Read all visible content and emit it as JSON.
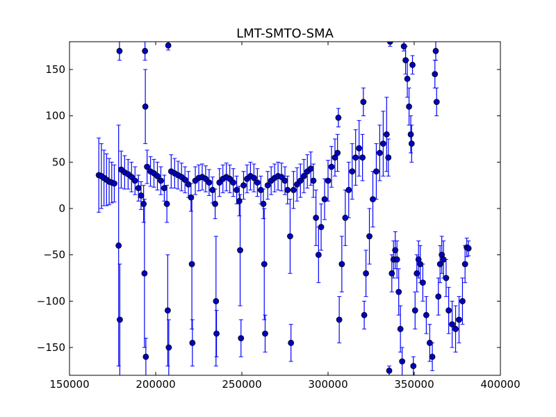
{
  "chart_data": {
    "type": "scatter",
    "title": "LMT-SMTO-SMA",
    "xlabel": "",
    "ylabel": "",
    "xlim": [
      150000,
      400000
    ],
    "ylim": [
      -180,
      180
    ],
    "x_ticks": [
      150000,
      200000,
      250000,
      300000,
      350000,
      400000
    ],
    "x_tick_labels": [
      "150000",
      "200000",
      "250000",
      "300000",
      "350000",
      "400000"
    ],
    "y_ticks": [
      150,
      100,
      50,
      0,
      -50,
      -100,
      -150
    ],
    "y_tick_labels": [
      "150",
      "100",
      "50",
      "0",
      "−50",
      "−100",
      "−150"
    ],
    "grid": false,
    "colors": {
      "marker": "#0000bf",
      "errorbar": "#0000ff",
      "background": "#ffffff"
    },
    "series": [
      {
        "points": [
          [
            167000,
            36,
            40
          ],
          [
            168500,
            35,
            35
          ],
          [
            170000,
            33,
            30
          ],
          [
            171500,
            31,
            28
          ],
          [
            173000,
            29,
            25
          ],
          [
            174500,
            28,
            22
          ],
          [
            176000,
            27,
            20
          ],
          [
            178500,
            -40,
            130
          ],
          [
            179000,
            170,
            10
          ],
          [
            179200,
            -120,
            60
          ],
          [
            180000,
            42,
            20
          ],
          [
            182000,
            39,
            18
          ],
          [
            184000,
            37,
            16
          ],
          [
            186000,
            34,
            16
          ],
          [
            188000,
            30,
            15
          ],
          [
            190000,
            22,
            14
          ],
          [
            191500,
            14,
            15
          ],
          [
            193000,
            5,
            20
          ],
          [
            193500,
            -70,
            80
          ],
          [
            193800,
            170,
            10
          ],
          [
            194000,
            110,
            40
          ],
          [
            194300,
            -160,
            20
          ],
          [
            195000,
            45,
            18
          ],
          [
            197000,
            40,
            16
          ],
          [
            199000,
            38,
            15
          ],
          [
            201000,
            35,
            15
          ],
          [
            203000,
            30,
            15
          ],
          [
            205000,
            22,
            14
          ],
          [
            206500,
            5,
            20
          ],
          [
            207000,
            -110,
            60
          ],
          [
            207300,
            176,
            5
          ],
          [
            207600,
            -150,
            30
          ],
          [
            209000,
            40,
            18
          ],
          [
            211000,
            38,
            16
          ],
          [
            213000,
            36,
            15
          ],
          [
            215000,
            34,
            15
          ],
          [
            217000,
            31,
            14
          ],
          [
            219000,
            26,
            14
          ],
          [
            220500,
            12,
            15
          ],
          [
            221000,
            -60,
            70
          ],
          [
            221300,
            -145,
            25
          ],
          [
            223000,
            30,
            15
          ],
          [
            225000,
            33,
            14
          ],
          [
            227000,
            34,
            14
          ],
          [
            229000,
            32,
            14
          ],
          [
            231000,
            28,
            14
          ],
          [
            233000,
            20,
            14
          ],
          [
            234500,
            5,
            16
          ],
          [
            235000,
            -100,
            70
          ],
          [
            235300,
            -135,
            25
          ],
          [
            237000,
            28,
            15
          ],
          [
            239000,
            32,
            15
          ],
          [
            241000,
            34,
            15
          ],
          [
            243000,
            32,
            15
          ],
          [
            245000,
            28,
            15
          ],
          [
            247000,
            20,
            15
          ],
          [
            248500,
            8,
            16
          ],
          [
            249000,
            -45,
            60
          ],
          [
            249500,
            -140,
            20
          ],
          [
            251000,
            25,
            15
          ],
          [
            253000,
            32,
            15
          ],
          [
            255000,
            35,
            15
          ],
          [
            257000,
            33,
            15
          ],
          [
            259000,
            28,
            15
          ],
          [
            261000,
            20,
            15
          ],
          [
            262500,
            5,
            16
          ],
          [
            263000,
            -60,
            60
          ],
          [
            263500,
            -135,
            20
          ],
          [
            265000,
            25,
            15
          ],
          [
            267000,
            30,
            15
          ],
          [
            269000,
            33,
            15
          ],
          [
            271000,
            35,
            15
          ],
          [
            273000,
            34,
            15
          ],
          [
            275000,
            30,
            15
          ],
          [
            276500,
            20,
            15
          ],
          [
            278000,
            -30,
            40
          ],
          [
            278500,
            -145,
            20
          ],
          [
            280000,
            20,
            20
          ],
          [
            282000,
            26,
            18
          ],
          [
            284000,
            30,
            18
          ],
          [
            286000,
            35,
            18
          ],
          [
            288000,
            40,
            18
          ],
          [
            290000,
            43,
            18
          ],
          [
            291500,
            30,
            18
          ],
          [
            293000,
            -10,
            30
          ],
          [
            294500,
            -50,
            30
          ],
          [
            296000,
            -20,
            25
          ],
          [
            298000,
            10,
            22
          ],
          [
            300000,
            30,
            22
          ],
          [
            302000,
            45,
            22
          ],
          [
            304000,
            55,
            20
          ],
          [
            305500,
            60,
            20
          ],
          [
            306000,
            98,
            10
          ],
          [
            306500,
            -120,
            25
          ],
          [
            308000,
            -60,
            30
          ],
          [
            310000,
            -10,
            30
          ],
          [
            312000,
            20,
            30
          ],
          [
            314000,
            40,
            30
          ],
          [
            316000,
            55,
            30
          ],
          [
            318000,
            65,
            30
          ],
          [
            320000,
            55,
            25
          ],
          [
            320500,
            115,
            15
          ],
          [
            321000,
            -115,
            15
          ],
          [
            322000,
            -70,
            25
          ],
          [
            324000,
            -30,
            30
          ],
          [
            326000,
            10,
            30
          ],
          [
            328000,
            40,
            30
          ],
          [
            330000,
            60,
            30
          ],
          [
            332000,
            70,
            35
          ],
          [
            334000,
            80,
            40
          ],
          [
            335000,
            55,
            20
          ],
          [
            335500,
            -175,
            5
          ],
          [
            336000,
            180,
            5
          ],
          [
            337000,
            -70,
            20
          ],
          [
            338000,
            -55,
            20
          ],
          [
            339000,
            -45,
            20
          ],
          [
            340000,
            -55,
            20
          ],
          [
            341000,
            -90,
            25
          ],
          [
            342000,
            -130,
            25
          ],
          [
            343000,
            -165,
            15
          ],
          [
            344000,
            175,
            5
          ],
          [
            345000,
            160,
            15
          ],
          [
            346000,
            140,
            20
          ],
          [
            347000,
            110,
            20
          ],
          [
            348000,
            80,
            20
          ],
          [
            348500,
            70,
            20
          ],
          [
            349000,
            155,
            10
          ],
          [
            349500,
            -170,
            10
          ],
          [
            350500,
            -110,
            20
          ],
          [
            351500,
            -70,
            20
          ],
          [
            352500,
            -55,
            20
          ],
          [
            353500,
            -60,
            20
          ],
          [
            355000,
            -80,
            20
          ],
          [
            357000,
            -115,
            20
          ],
          [
            359000,
            -145,
            20
          ],
          [
            360500,
            -160,
            15
          ],
          [
            362000,
            145,
            15
          ],
          [
            362500,
            170,
            10
          ],
          [
            363000,
            115,
            15
          ],
          [
            364000,
            -95,
            20
          ],
          [
            365000,
            -60,
            20
          ],
          [
            366000,
            -50,
            20
          ],
          [
            367000,
            -55,
            20
          ],
          [
            368500,
            -75,
            20
          ],
          [
            370000,
            -110,
            25
          ],
          [
            372000,
            -125,
            25
          ],
          [
            374000,
            -130,
            25
          ],
          [
            376000,
            -120,
            25
          ],
          [
            378000,
            -100,
            25
          ],
          [
            379500,
            -60,
            20
          ],
          [
            380500,
            -42,
            10
          ],
          [
            381500,
            -43,
            8
          ]
        ]
      }
    ]
  }
}
